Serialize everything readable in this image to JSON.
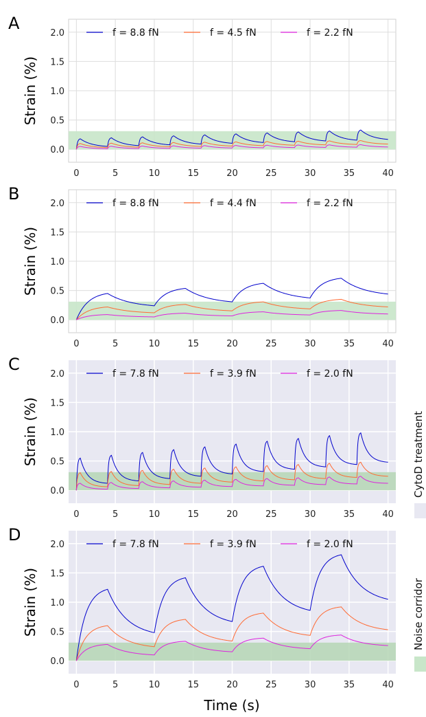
{
  "xlabel": "Time (s)",
  "ylabel": "Strain (%)",
  "side_legend": {
    "cytod_label": "CytoD treatment",
    "cytod_color": "#e8e8f2",
    "noise_label": "Noise corridor",
    "noise_color": "#c8e6c9"
  },
  "chart_data": [
    {
      "type": "line",
      "panel_label": "A",
      "background": "white",
      "xlim": [
        -1,
        41
      ],
      "ylim": [
        -0.22,
        2.22
      ],
      "xticks": [
        0,
        5,
        10,
        15,
        20,
        25,
        30,
        35,
        40
      ],
      "yticks": [
        0.0,
        0.5,
        1.0,
        1.5,
        2.0
      ],
      "noise_corridor": [
        0,
        0.31
      ],
      "pulse": {
        "period": 4,
        "on": 0.5,
        "count": 10,
        "tau_on": 0.15,
        "tau_off": 1.5
      },
      "series": [
        {
          "name": "f = 8.8 fN",
          "color": "#0000cc",
          "peak_first": 0.18,
          "peak_last": 0.33,
          "trough_first": 0.05,
          "trough_last": 0.17
        },
        {
          "name": "f = 4.5 fN",
          "color": "#ff6a33",
          "peak_first": 0.1,
          "peak_last": 0.15,
          "trough_first": 0.03,
          "trough_last": 0.09
        },
        {
          "name": "f = 2.2 fN",
          "color": "#dd22dd",
          "peak_first": 0.05,
          "peak_last": 0.08,
          "trough_first": 0.01,
          "trough_last": 0.04
        }
      ]
    },
    {
      "type": "line",
      "panel_label": "B",
      "background": "white",
      "xlim": [
        -1,
        41
      ],
      "ylim": [
        -0.22,
        2.22
      ],
      "xticks": [
        0,
        5,
        10,
        15,
        20,
        25,
        30,
        35,
        40
      ],
      "yticks": [
        0.0,
        0.5,
        1.0,
        1.5,
        2.0
      ],
      "noise_corridor": [
        0,
        0.31
      ],
      "pulse": {
        "period": 10,
        "on": 4,
        "count": 4,
        "tau_on": 1.5,
        "tau_off": 3.0
      },
      "series": [
        {
          "name": "f = 8.8 fN",
          "color": "#0000cc",
          "peak_first": 0.45,
          "peak_last": 0.71,
          "trough_first": 0.24,
          "trough_last": 0.44
        },
        {
          "name": "f = 4.4 fN",
          "color": "#ff6a33",
          "peak_first": 0.22,
          "peak_last": 0.35,
          "trough_first": 0.12,
          "trough_last": 0.22
        },
        {
          "name": "f = 2.2 fN",
          "color": "#dd22dd",
          "peak_first": 0.09,
          "peak_last": 0.16,
          "trough_first": 0.05,
          "trough_last": 0.1
        }
      ]
    },
    {
      "type": "line",
      "panel_label": "C",
      "background": "lavender",
      "xlim": [
        -1,
        41
      ],
      "ylim": [
        -0.22,
        2.22
      ],
      "xticks": [
        0,
        5,
        10,
        15,
        20,
        25,
        30,
        35,
        40
      ],
      "yticks": [
        0.0,
        0.5,
        1.0,
        1.5,
        2.0
      ],
      "noise_corridor": [
        0,
        0.31
      ],
      "pulse": {
        "period": 4,
        "on": 0.5,
        "count": 10,
        "tau_on": 0.12,
        "tau_off": 0.9
      },
      "series": [
        {
          "name": "f = 7.8 fN",
          "color": "#0000cc",
          "peak_first": 0.55,
          "peak_last": 0.98,
          "trough_first": 0.12,
          "trough_last": 0.48
        },
        {
          "name": "f = 3.9 fN",
          "color": "#ff6a33",
          "peak_first": 0.3,
          "peak_last": 0.48,
          "trough_first": 0.06,
          "trough_last": 0.24
        },
        {
          "name": "f = 2.0 fN",
          "color": "#dd22dd",
          "peak_first": 0.12,
          "peak_last": 0.24,
          "trough_first": 0.02,
          "trough_last": 0.12
        }
      ]
    },
    {
      "type": "line",
      "panel_label": "D",
      "background": "lavender",
      "xlim": [
        -1,
        41
      ],
      "ylim": [
        -0.22,
        2.22
      ],
      "xticks": [
        0,
        5,
        10,
        15,
        20,
        25,
        30,
        35,
        40
      ],
      "yticks": [
        0.0,
        0.5,
        1.0,
        1.5,
        2.0
      ],
      "noise_corridor": [
        0,
        0.31
      ],
      "pulse": {
        "period": 10,
        "on": 4,
        "count": 4,
        "tau_on": 1.2,
        "tau_off": 2.5
      },
      "series": [
        {
          "name": "f = 7.8 fN",
          "color": "#0000cc",
          "peak_first": 1.22,
          "peak_last": 1.81,
          "trough_first": 0.48,
          "trough_last": 1.05
        },
        {
          "name": "f = 3.9 fN",
          "color": "#ff6a33",
          "peak_first": 0.6,
          "peak_last": 0.92,
          "trough_first": 0.24,
          "trough_last": 0.53
        },
        {
          "name": "f = 2.0 fN",
          "color": "#dd22dd",
          "peak_first": 0.28,
          "peak_last": 0.44,
          "trough_first": 0.1,
          "trough_last": 0.26
        }
      ]
    }
  ]
}
